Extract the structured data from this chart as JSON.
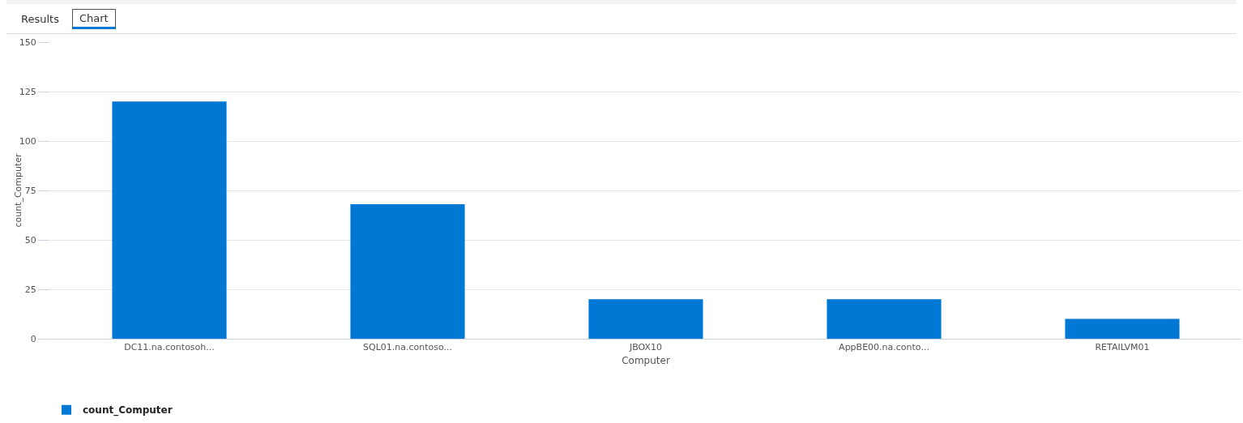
{
  "chart_data": {
    "type": "bar",
    "annotations": [
      "Results",
      "Chart"
    ],
    "categories": [
      "DC11.na.contosoh...",
      "SQL01.na.contoso...",
      "JBOX10",
      "AppBE00.na.conto...",
      "RETAILVM01"
    ],
    "series": [
      {
        "name": "count_Computer",
        "color": "#0078d4",
        "values": [
          120,
          68,
          20,
          20,
          10
        ]
      }
    ],
    "xlabel": "Computer",
    "ylabel": "count_Computer",
    "ylim": [
      0,
      150
    ],
    "yticks": [
      0,
      25,
      50,
      75,
      100,
      125,
      150
    ],
    "grid": "y",
    "legend": "bottom left"
  }
}
